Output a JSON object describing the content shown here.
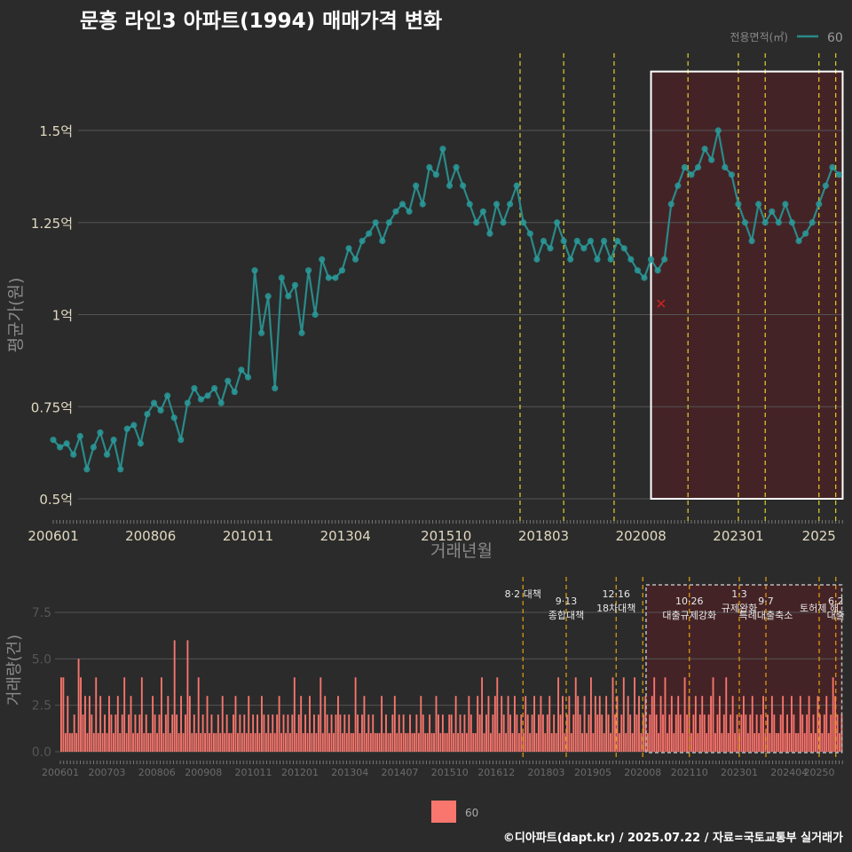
{
  "title": "문흥 라인3 아파트(1994) 매매가격 변화",
  "footer": "©디아파트(dapt.kr) / 2025.07.22 / 자료=국토교통부 실거래가",
  "colors": {
    "background": "#2b2b2b",
    "line": "#2a8a8a",
    "point": "#2a9a9a",
    "bar": "#f8766d",
    "policy_line": "#e6d028",
    "policy_line_bottom": "#e6a010",
    "highlight_fill": "#5a1e22",
    "grid": "#555555",
    "marker_x": "#cc2222"
  },
  "chart_data": [
    {
      "type": "line",
      "title": "문흥 라인3 아파트(1994) 매매가격 변화",
      "xlabel": "거래년월",
      "ylabel": "평균가(원)",
      "legend": {
        "title": "전용면적(㎡)",
        "items": [
          "60"
        ],
        "position": "top-right"
      },
      "x_ticks": [
        "200601",
        "200806",
        "201011",
        "201304",
        "201510",
        "201803",
        "202008",
        "202301",
        "2025"
      ],
      "y_ticks": [
        "0.5억",
        "0.75억",
        "1억",
        "1.25억",
        "1.5억"
      ],
      "y_tick_values": [
        0.5,
        0.75,
        1.0,
        1.25,
        1.5
      ],
      "ylim": [
        0.45,
        1.7
      ],
      "grid": true,
      "highlight_region": {
        "x_start": "2020-11",
        "x_end": "2025-07",
        "y_start": 0.5,
        "y_end": 1.66
      },
      "policy_dates": [
        "2017-08",
        "2018-09",
        "2019-12",
        "2021-10",
        "2023-01",
        "2023-09",
        "2025-01",
        "2025-06"
      ],
      "marker": {
        "x": "2021-02",
        "y": 1.03,
        "symbol": "x"
      },
      "series": [
        {
          "name": "60",
          "x": [
            "2006-01",
            "2006-03",
            "2006-05",
            "2006-07",
            "2006-09",
            "2006-11",
            "2007-01",
            "2007-03",
            "2007-05",
            "2007-07",
            "2007-09",
            "2007-11",
            "2008-01",
            "2008-03",
            "2008-05",
            "2008-07",
            "2008-09",
            "2008-11",
            "2009-01",
            "2009-03",
            "2009-05",
            "2009-07",
            "2009-09",
            "2009-11",
            "2010-01",
            "2010-03",
            "2010-05",
            "2010-07",
            "2010-09",
            "2010-11",
            "2011-01",
            "2011-03",
            "2011-05",
            "2011-07",
            "2011-09",
            "2011-11",
            "2012-01",
            "2012-03",
            "2012-05",
            "2012-07",
            "2012-09",
            "2012-11",
            "2013-01",
            "2013-03",
            "2013-05",
            "2013-07",
            "2013-09",
            "2013-11",
            "2014-01",
            "2014-03",
            "2014-05",
            "2014-07",
            "2014-09",
            "2014-11",
            "2015-01",
            "2015-03",
            "2015-05",
            "2015-07",
            "2015-09",
            "2015-11",
            "2016-01",
            "2016-03",
            "2016-05",
            "2016-07",
            "2016-09",
            "2016-11",
            "2017-01",
            "2017-03",
            "2017-05",
            "2017-07",
            "2017-09",
            "2017-11",
            "2018-01",
            "2018-03",
            "2018-05",
            "2018-07",
            "2018-09",
            "2018-11",
            "2019-01",
            "2019-03",
            "2019-05",
            "2019-07",
            "2019-09",
            "2019-11",
            "2020-01",
            "2020-03",
            "2020-05",
            "2020-07",
            "2020-09",
            "2020-11",
            "2021-01",
            "2021-03",
            "2021-05",
            "2021-07",
            "2021-09",
            "2021-11",
            "2022-01",
            "2022-03",
            "2022-05",
            "2022-07",
            "2022-09",
            "2022-11",
            "2023-01",
            "2023-03",
            "2023-05",
            "2023-07",
            "2023-09",
            "2023-11",
            "2024-01",
            "2024-03",
            "2024-05",
            "2024-07",
            "2024-09",
            "2024-11",
            "2025-01",
            "2025-03",
            "2025-05",
            "2025-07"
          ],
          "y": [
            0.66,
            0.64,
            0.65,
            0.62,
            0.67,
            0.58,
            0.64,
            0.68,
            0.62,
            0.66,
            0.58,
            0.69,
            0.7,
            0.65,
            0.73,
            0.76,
            0.74,
            0.78,
            0.72,
            0.66,
            0.76,
            0.8,
            0.77,
            0.78,
            0.8,
            0.76,
            0.82,
            0.79,
            0.85,
            0.83,
            1.12,
            0.95,
            1.05,
            0.8,
            1.1,
            1.05,
            1.08,
            0.95,
            1.12,
            1.0,
            1.15,
            1.1,
            1.1,
            1.12,
            1.18,
            1.15,
            1.2,
            1.22,
            1.25,
            1.2,
            1.25,
            1.28,
            1.3,
            1.28,
            1.35,
            1.3,
            1.4,
            1.38,
            1.45,
            1.35,
            1.4,
            1.35,
            1.3,
            1.25,
            1.28,
            1.22,
            1.3,
            1.25,
            1.3,
            1.35,
            1.25,
            1.22,
            1.15,
            1.2,
            1.18,
            1.25,
            1.2,
            1.15,
            1.2,
            1.18,
            1.2,
            1.15,
            1.2,
            1.15,
            1.2,
            1.18,
            1.15,
            1.12,
            1.1,
            1.15,
            1.12,
            1.15,
            1.3,
            1.35,
            1.4,
            1.38,
            1.4,
            1.45,
            1.42,
            1.5,
            1.4,
            1.38,
            1.3,
            1.25,
            1.2,
            1.3,
            1.25,
            1.28,
            1.25,
            1.3,
            1.25,
            1.2,
            1.22,
            1.25,
            1.3,
            1.35,
            1.4,
            1.38
          ]
        }
      ]
    },
    {
      "type": "bar",
      "xlabel": "",
      "ylabel": "거래량(건)",
      "legend": {
        "items": [
          "60"
        ],
        "position": "bottom"
      },
      "x_ticks": [
        "200601",
        "200703",
        "200806",
        "200908",
        "201011",
        "201201",
        "201304",
        "201407",
        "201510",
        "201612",
        "201803",
        "201905",
        "202008",
        "202110",
        "202301",
        "202404",
        "20250"
      ],
      "y_ticks": [
        "0.0",
        "2.5",
        "5.0",
        "7.5"
      ],
      "y_tick_values": [
        0,
        2.5,
        5,
        7.5
      ],
      "ylim": [
        0,
        9
      ],
      "grid": true,
      "highlight_region": {
        "x_start": "2020-09",
        "x_end": "2025-07"
      },
      "policy_dates": [
        "2017-08",
        "2018-09",
        "2019-12",
        "2020-08",
        "2021-10",
        "2023-01",
        "2023-09",
        "2025-01",
        "2025-06"
      ],
      "annotations": [
        {
          "date": "2017-08",
          "lines": [
            "8·2 대책"
          ]
        },
        {
          "date": "2018-09",
          "lines": [
            "9·13",
            "종합대책"
          ]
        },
        {
          "date": "2019-12",
          "lines": [
            "12·16",
            "18차대책"
          ]
        },
        {
          "date": "2021-10",
          "lines": [
            "10·26",
            "대출규제강화"
          ]
        },
        {
          "date": "2023-01",
          "lines": [
            "1·3",
            "규제완화"
          ]
        },
        {
          "date": "2023-09",
          "lines": [
            "9·7",
            "특례대출축소"
          ]
        },
        {
          "date": "2025-01",
          "lines": [
            "",
            "토허제 해"
          ]
        },
        {
          "date": "2025-06",
          "lines": [
            "6·2",
            "대출"
          ]
        }
      ],
      "series": [
        {
          "name": "60",
          "values": [
            4,
            4,
            1,
            3,
            1,
            1,
            2,
            1,
            5,
            4,
            2,
            3,
            1,
            3,
            2,
            1,
            4,
            1,
            3,
            1,
            2,
            1,
            3,
            2,
            1,
            2,
            3,
            1,
            2,
            4,
            1,
            2,
            3,
            1,
            2,
            1,
            2,
            4,
            1,
            2,
            1,
            1,
            3,
            2,
            1,
            2,
            4,
            1,
            2,
            3,
            1,
            2,
            6,
            2,
            1,
            3,
            1,
            2,
            6,
            3,
            1,
            2,
            1,
            4,
            1,
            2,
            1,
            3,
            1,
            2,
            1,
            1,
            2,
            1,
            3,
            1,
            2,
            1,
            1,
            2,
            3,
            1,
            2,
            1,
            2,
            1,
            3,
            1,
            2,
            1,
            2,
            1,
            3,
            2,
            1,
            2,
            1,
            2,
            1,
            2,
            3,
            1,
            2,
            1,
            2,
            1,
            2,
            4,
            1,
            2,
            3,
            1,
            2,
            1,
            3,
            1,
            2,
            1,
            2,
            4,
            1,
            3,
            2,
            1,
            2,
            1,
            2,
            3,
            2,
            1,
            2,
            1,
            2,
            1,
            1,
            4,
            2,
            1,
            2,
            3,
            1,
            2,
            1,
            2,
            1,
            1,
            1,
            3,
            1,
            2,
            1,
            1,
            2,
            3,
            1,
            2,
            1,
            2,
            1,
            1,
            2,
            1,
            1,
            2,
            1,
            3,
            2,
            1,
            1,
            2,
            1,
            1,
            3,
            2,
            1,
            2,
            1,
            1,
            2,
            2,
            1,
            3,
            1,
            2,
            1,
            2,
            1,
            3,
            2,
            1,
            1,
            3,
            2,
            4,
            1,
            2,
            3,
            1,
            2,
            3,
            4,
            1,
            3,
            2,
            1,
            3,
            2,
            1,
            3,
            2,
            1,
            2,
            1,
            3,
            2,
            1,
            2,
            3,
            1,
            2,
            3,
            2,
            1,
            2,
            3,
            1,
            2,
            1,
            4,
            2,
            3,
            1,
            2,
            3,
            1,
            2,
            4,
            3,
            2,
            1,
            3,
            1,
            2,
            4,
            1,
            3,
            2,
            3,
            2,
            1,
            3,
            2,
            1,
            4,
            2,
            3,
            1,
            2,
            4,
            1,
            3,
            2,
            1,
            4,
            2,
            3,
            1,
            2,
            3,
            1,
            2,
            3,
            4,
            2,
            1,
            3,
            2,
            4,
            1,
            2,
            3,
            1,
            2,
            3,
            2,
            1,
            4,
            2,
            3,
            1,
            2,
            3,
            1,
            2,
            3,
            2,
            1,
            2,
            3,
            4,
            1,
            2,
            3,
            1,
            2,
            4,
            1,
            2,
            3,
            1,
            2,
            1,
            2,
            3,
            2,
            1,
            2,
            3,
            1,
            2,
            1,
            2,
            3,
            1,
            2,
            1,
            3,
            2,
            1,
            1,
            2,
            3,
            1,
            2,
            1,
            3,
            2,
            1,
            1,
            3,
            2,
            1,
            2,
            3,
            1,
            2,
            1,
            3,
            2,
            1,
            2,
            3,
            1,
            2,
            4,
            3,
            2,
            1,
            2
          ]
        }
      ]
    }
  ]
}
